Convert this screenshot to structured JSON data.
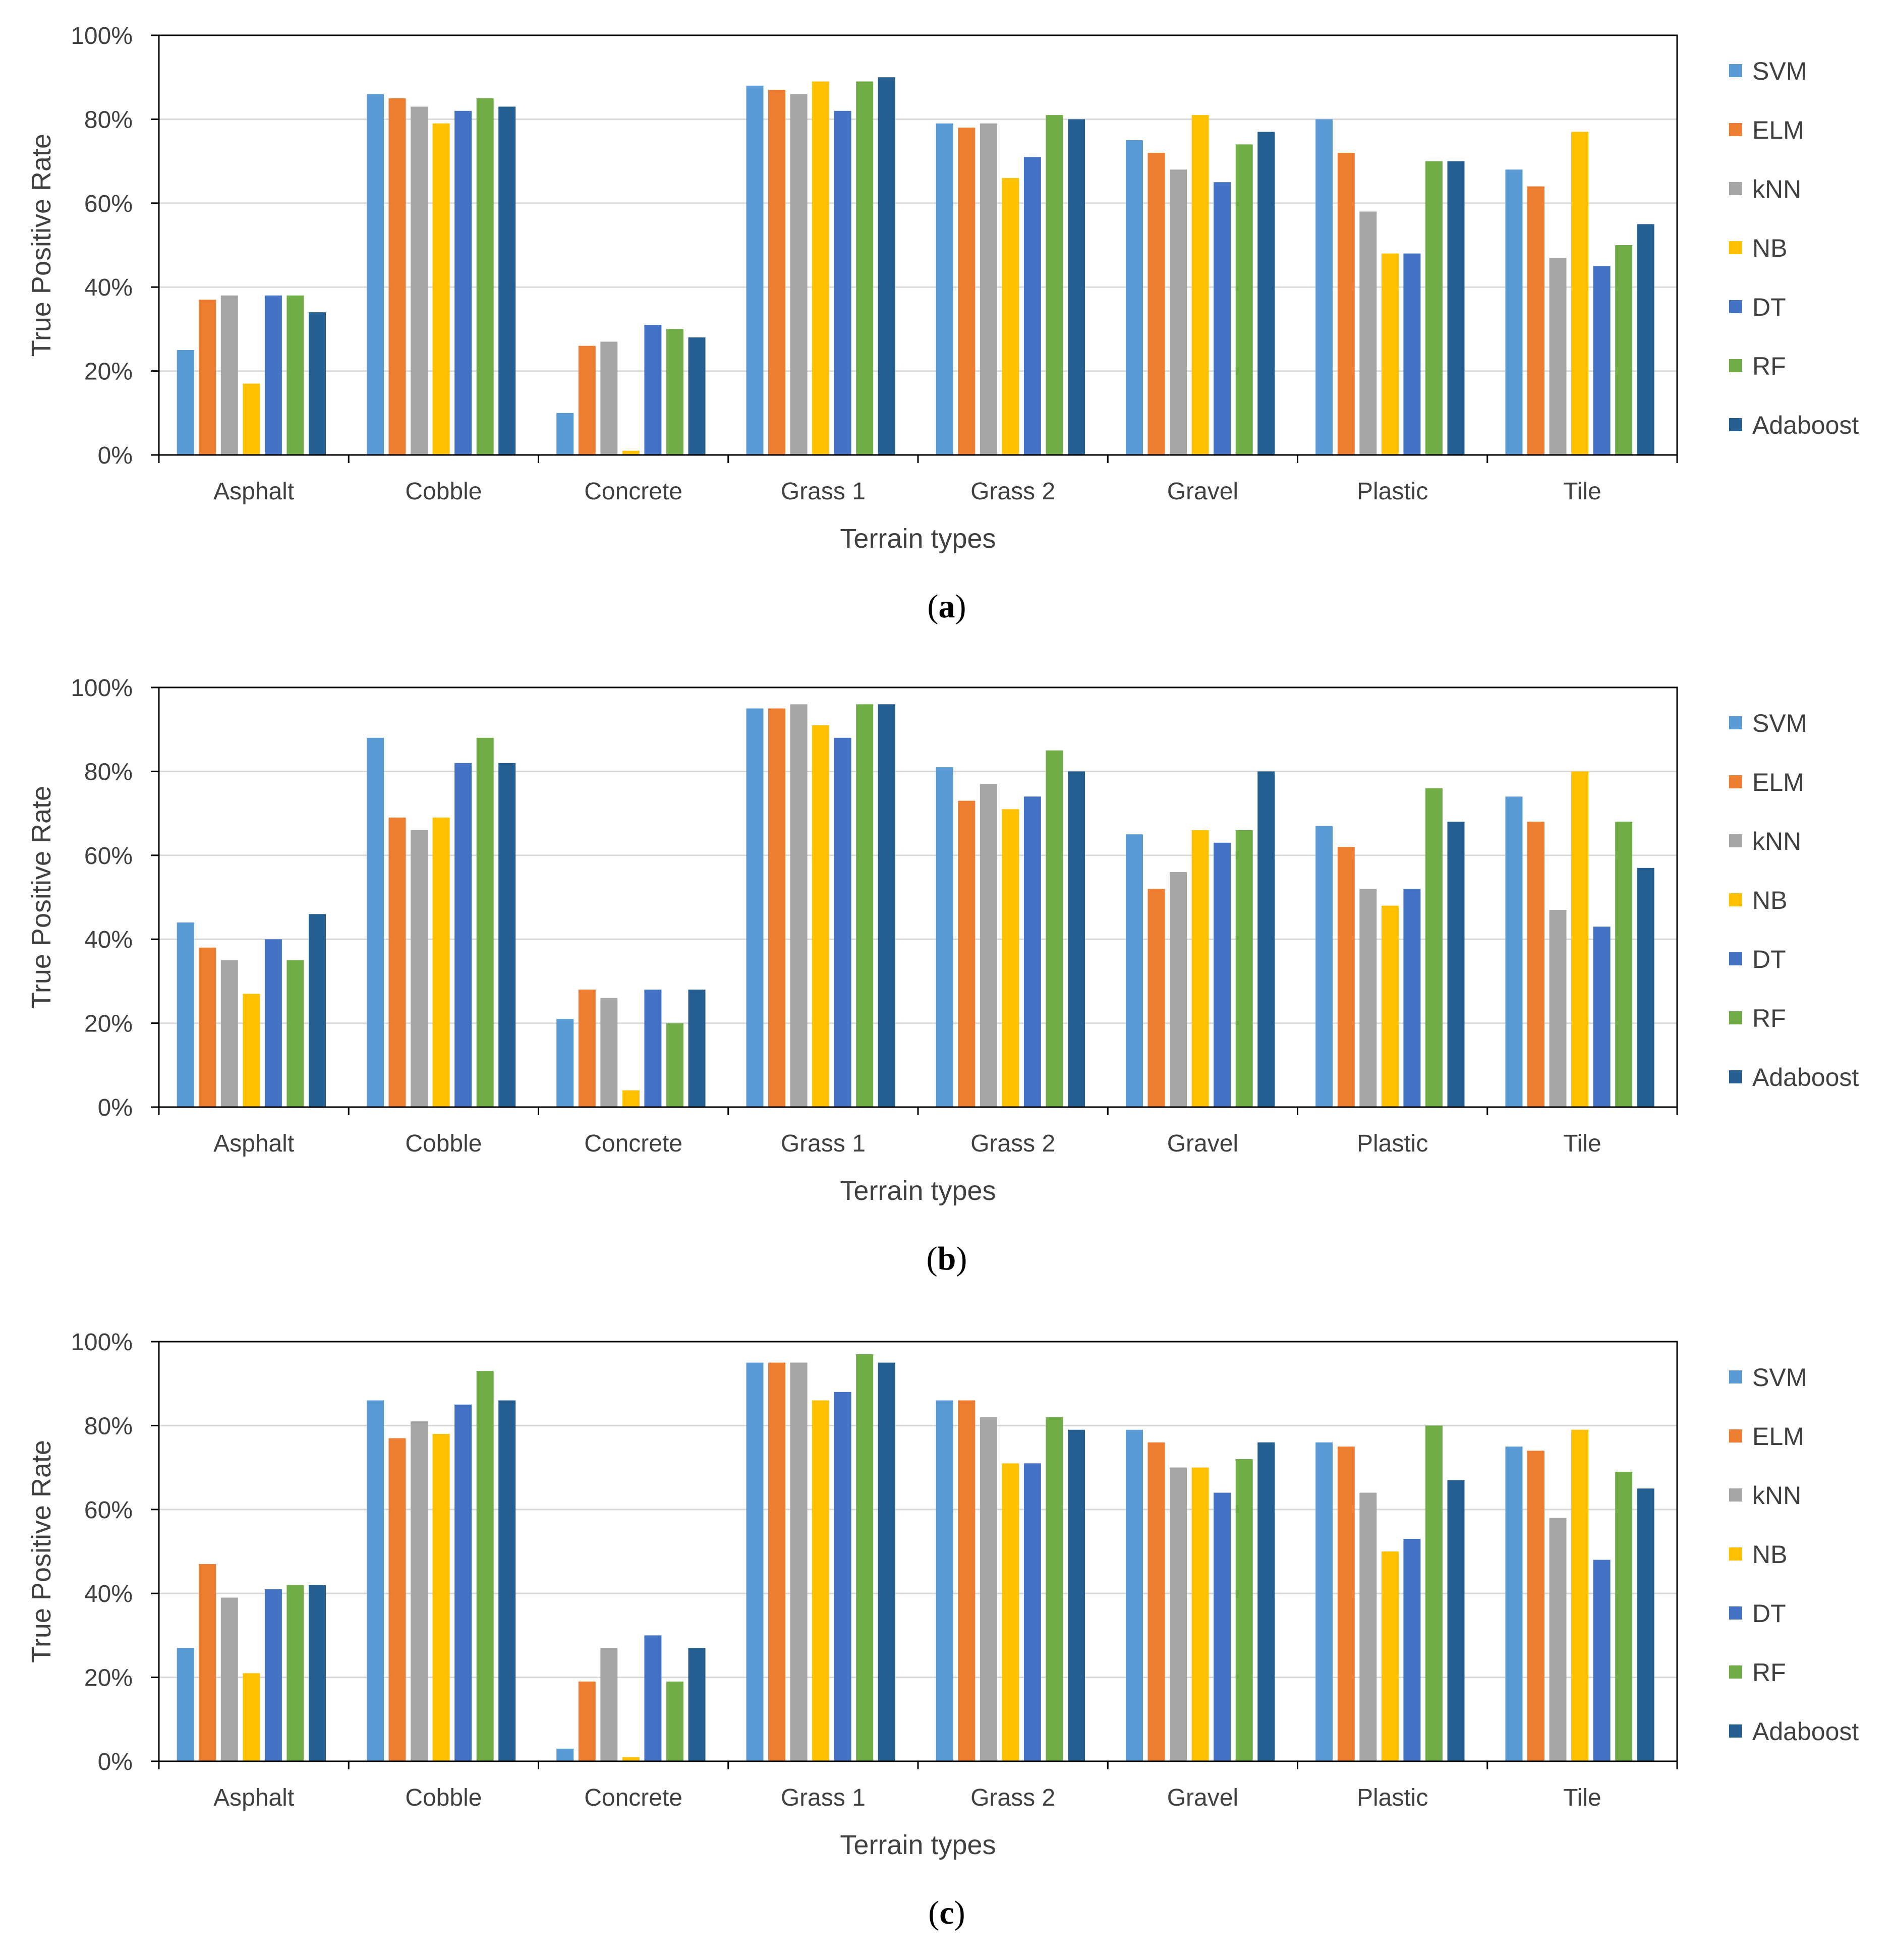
{
  "chart_data": [
    {
      "type": "bar",
      "panel_label": "(a)",
      "panel_letter": "a",
      "xlabel": "Terrain types",
      "ylabel": "True Positive Rate",
      "ylim": [
        0,
        100
      ],
      "yticks": [
        "0%",
        "20%",
        "40%",
        "60%",
        "80%",
        "100%"
      ],
      "grid": true,
      "legend_position": "right",
      "categories": [
        "Asphalt",
        "Cobble",
        "Concrete",
        "Grass 1",
        "Grass 2",
        "Gravel",
        "Plastic",
        "Tile"
      ],
      "series": [
        {
          "name": "SVM",
          "values": [
            25,
            86,
            10,
            88,
            79,
            75,
            80,
            68
          ]
        },
        {
          "name": "ELM",
          "values": [
            37,
            85,
            26,
            87,
            78,
            72,
            72,
            64
          ]
        },
        {
          "name": "kNN",
          "values": [
            38,
            83,
            27,
            86,
            79,
            68,
            58,
            47
          ]
        },
        {
          "name": "NB",
          "values": [
            17,
            79,
            1,
            89,
            66,
            81,
            48,
            77
          ]
        },
        {
          "name": "DT",
          "values": [
            38,
            82,
            31,
            82,
            71,
            65,
            48,
            45
          ]
        },
        {
          "name": "RF",
          "values": [
            38,
            85,
            30,
            89,
            81,
            74,
            70,
            50
          ]
        },
        {
          "name": "Adaboost",
          "values": [
            34,
            83,
            28,
            90,
            80,
            77,
            70,
            55
          ]
        }
      ]
    },
    {
      "type": "bar",
      "panel_label": "(b)",
      "panel_letter": "b",
      "xlabel": "Terrain types",
      "ylabel": "True Positive Rate",
      "ylim": [
        0,
        100
      ],
      "yticks": [
        "0%",
        "20%",
        "40%",
        "60%",
        "80%",
        "100%"
      ],
      "grid": true,
      "legend_position": "right",
      "categories": [
        "Asphalt",
        "Cobble",
        "Concrete",
        "Grass 1",
        "Grass 2",
        "Gravel",
        "Plastic",
        "Tile"
      ],
      "series": [
        {
          "name": "SVM",
          "values": [
            44,
            88,
            21,
            95,
            81,
            65,
            67,
            74
          ]
        },
        {
          "name": "ELM",
          "values": [
            38,
            69,
            28,
            95,
            73,
            52,
            62,
            68
          ]
        },
        {
          "name": "kNN",
          "values": [
            35,
            66,
            26,
            96,
            77,
            56,
            52,
            47
          ]
        },
        {
          "name": "NB",
          "values": [
            27,
            69,
            4,
            91,
            71,
            66,
            48,
            80
          ]
        },
        {
          "name": "DT",
          "values": [
            40,
            82,
            28,
            88,
            74,
            63,
            52,
            43
          ]
        },
        {
          "name": "RF",
          "values": [
            35,
            88,
            20,
            96,
            85,
            66,
            76,
            68
          ]
        },
        {
          "name": "Adaboost",
          "values": [
            46,
            82,
            28,
            96,
            80,
            80,
            68,
            57
          ]
        }
      ]
    },
    {
      "type": "bar",
      "panel_label": "(c)",
      "panel_letter": "c",
      "xlabel": "Terrain types",
      "ylabel": "True Positive Rate",
      "ylim": [
        0,
        100
      ],
      "yticks": [
        "0%",
        "20%",
        "40%",
        "60%",
        "80%",
        "100%"
      ],
      "grid": true,
      "legend_position": "right",
      "categories": [
        "Asphalt",
        "Cobble",
        "Concrete",
        "Grass 1",
        "Grass 2",
        "Gravel",
        "Plastic",
        "Tile"
      ],
      "series": [
        {
          "name": "SVM",
          "values": [
            27,
            86,
            3,
            95,
            86,
            79,
            76,
            75
          ]
        },
        {
          "name": "ELM",
          "values": [
            47,
            77,
            19,
            95,
            86,
            76,
            75,
            74
          ]
        },
        {
          "name": "kNN",
          "values": [
            39,
            81,
            27,
            95,
            82,
            70,
            64,
            58
          ]
        },
        {
          "name": "NB",
          "values": [
            21,
            78,
            1,
            86,
            71,
            70,
            50,
            79
          ]
        },
        {
          "name": "DT",
          "values": [
            41,
            85,
            30,
            88,
            71,
            64,
            53,
            48
          ]
        },
        {
          "name": "RF",
          "values": [
            42,
            93,
            19,
            97,
            82,
            72,
            80,
            69
          ]
        },
        {
          "name": "Adaboost",
          "values": [
            42,
            86,
            27,
            95,
            79,
            76,
            67,
            65
          ]
        }
      ]
    }
  ],
  "colors": {
    "SVM": "#5B9BD5",
    "ELM": "#ED7D31",
    "kNN": "#A5A5A5",
    "NB": "#FFC000",
    "DT": "#4472C4",
    "RF": "#70AD47",
    "Adaboost": "#255E91",
    "grid": "#d9d9d9",
    "axis": "#000000",
    "text": "#404040"
  }
}
